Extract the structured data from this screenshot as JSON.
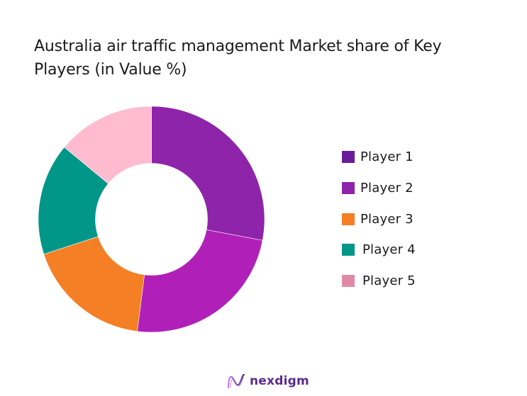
{
  "chart_data": {
    "type": "pie",
    "variant": "donut",
    "title": "Australia air traffic management Market share of Key Players (in Value %)",
    "categories": [
      "Player 1",
      "Player 2",
      "Player 3",
      "Player 4",
      "Player 5"
    ],
    "values": [
      28,
      24,
      18,
      16,
      14
    ],
    "unit": "%",
    "slice_colors": [
      "#8e24aa",
      "#b020b8",
      "#f47f24",
      "#009688",
      "#ffbcd0"
    ],
    "legend_colors": [
      "#6a1b9a",
      "#8e24aa",
      "#f47f24",
      "#009688",
      "#e08aa6"
    ],
    "legend_position": "right",
    "start_angle_deg": 0,
    "direction": "clockwise"
  },
  "title_lines": [
    "Australia air traffic management Market share of Key",
    "Players (in Value %)"
  ],
  "legend": {
    "items": [
      {
        "label": "Player 1",
        "color": "#6a1b9a"
      },
      {
        "label": "Player 2",
        "color": "#8e24aa"
      },
      {
        "label": "Player 3",
        "color": "#f47f24"
      },
      {
        "label": "Player 4",
        "color": "#009688"
      },
      {
        "label": "Player 5",
        "color": "#e08aa6"
      }
    ]
  },
  "logo": {
    "text": "nexdigm",
    "icon": "nexdigm-wave-icon"
  }
}
